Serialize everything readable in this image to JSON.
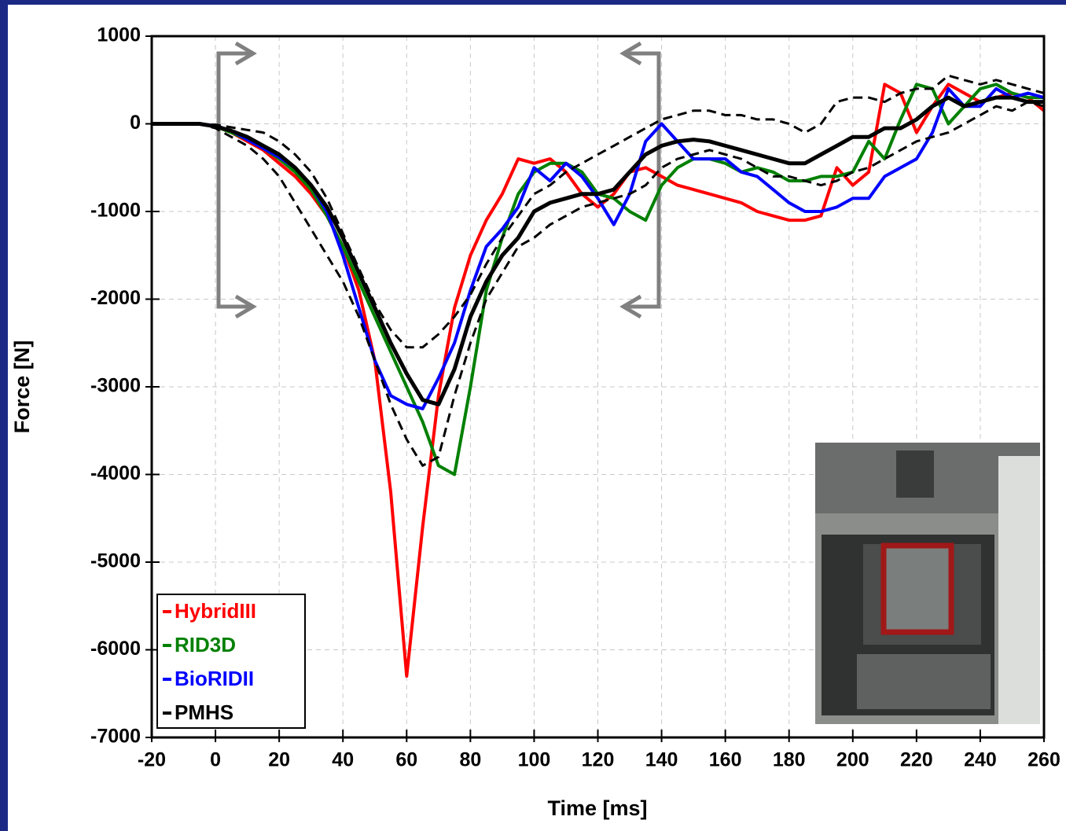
{
  "chart_data": {
    "type": "line",
    "x_label": "Time [ms]",
    "y_label": "Force [N]",
    "xlim": [
      -20,
      260
    ],
    "xticks": [
      -20,
      0,
      20,
      40,
      60,
      80,
      100,
      120,
      140,
      160,
      180,
      200,
      220,
      240,
      260
    ],
    "ylim": [
      -7000,
      1000
    ],
    "yticks": [
      1000,
      0,
      -1000,
      -2000,
      -3000,
      -4000,
      -5000,
      -6000,
      -7000
    ],
    "grid": true,
    "legend": "lower left",
    "x": [
      -20,
      -15,
      -10,
      -5,
      0,
      5,
      10,
      15,
      20,
      25,
      30,
      35,
      40,
      45,
      50,
      55,
      60,
      65,
      70,
      75,
      80,
      85,
      90,
      95,
      100,
      105,
      110,
      115,
      120,
      125,
      130,
      135,
      140,
      145,
      150,
      155,
      160,
      165,
      170,
      175,
      180,
      185,
      190,
      195,
      200,
      205,
      210,
      215,
      220,
      225,
      230,
      235,
      240,
      245,
      250,
      255,
      260
    ],
    "series": [
      {
        "name": "HybridIII",
        "color": "#ff0000",
        "dashed": false,
        "values": [
          0,
          0,
          0,
          0,
          -30,
          -100,
          -200,
          -300,
          -450,
          -600,
          -800,
          -1050,
          -1400,
          -1900,
          -2700,
          -4200,
          -6300,
          -4600,
          -3100,
          -2100,
          -1500,
          -1100,
          -800,
          -400,
          -450,
          -400,
          -550,
          -800,
          -950,
          -800,
          -550,
          -500,
          -600,
          -700,
          -750,
          -800,
          -850,
          -900,
          -1000,
          -1050,
          -1100,
          -1100,
          -1050,
          -500,
          -700,
          -550,
          450,
          350,
          -100,
          200,
          450,
          350,
          250,
          300,
          350,
          300,
          150
        ]
      },
      {
        "name": "RID3D",
        "color": "#008000",
        "dashed": false,
        "values": [
          0,
          0,
          0,
          0,
          -30,
          -100,
          -180,
          -280,
          -400,
          -550,
          -750,
          -1050,
          -1400,
          -1800,
          -2200,
          -2600,
          -3000,
          -3400,
          -3900,
          -4000,
          -3000,
          -1900,
          -1300,
          -800,
          -550,
          -450,
          -450,
          -550,
          -800,
          -850,
          -1000,
          -1100,
          -700,
          -500,
          -400,
          -400,
          -450,
          -550,
          -500,
          -550,
          -650,
          -650,
          -600,
          -600,
          -550,
          -200,
          -400,
          50,
          450,
          400,
          0,
          200,
          400,
          450,
          350,
          300,
          300
        ]
      },
      {
        "name": "BioRIDII",
        "color": "#0000ff",
        "dashed": false,
        "values": [
          0,
          0,
          0,
          0,
          -20,
          -80,
          -180,
          -280,
          -380,
          -500,
          -700,
          -1000,
          -1500,
          -2100,
          -2700,
          -3100,
          -3200,
          -3250,
          -2900,
          -2500,
          -1900,
          -1400,
          -1200,
          -950,
          -500,
          -650,
          -450,
          -600,
          -850,
          -1150,
          -800,
          -200,
          0,
          -200,
          -400,
          -400,
          -400,
          -550,
          -600,
          -750,
          -900,
          -1000,
          -1000,
          -950,
          -850,
          -850,
          -600,
          -500,
          -400,
          -100,
          400,
          200,
          200,
          400,
          300,
          350,
          300
        ]
      },
      {
        "name": "PMHS",
        "color": "#000000",
        "dashed": false,
        "values": [
          0,
          0,
          0,
          0,
          -30,
          -80,
          -150,
          -250,
          -350,
          -500,
          -700,
          -950,
          -1300,
          -1700,
          -2100,
          -2500,
          -2850,
          -3150,
          -3200,
          -2800,
          -2200,
          -1800,
          -1500,
          -1300,
          -1000,
          -900,
          -850,
          -800,
          -800,
          -750,
          -550,
          -350,
          -250,
          -200,
          -180,
          -200,
          -250,
          -300,
          -350,
          -400,
          -450,
          -450,
          -350,
          -250,
          -150,
          -150,
          -50,
          -50,
          50,
          200,
          300,
          200,
          250,
          300,
          300,
          250,
          250
        ]
      },
      {
        "color": "#000000",
        "dashed": true,
        "values": [
          0,
          0,
          0,
          0,
          -10,
          -40,
          -70,
          -100,
          -200,
          -350,
          -550,
          -850,
          -1250,
          -1650,
          -2050,
          -2350,
          -2550,
          -2550,
          -2400,
          -2200,
          -1950,
          -1600,
          -1300,
          -1050,
          -800,
          -700,
          -550,
          -450,
          -350,
          -250,
          -150,
          -50,
          50,
          100,
          150,
          150,
          100,
          100,
          50,
          50,
          0,
          -100,
          0,
          250,
          300,
          300,
          250,
          350,
          400,
          400,
          550,
          500,
          450,
          500,
          450,
          400,
          350
        ]
      },
      {
        "color": "#000000",
        "dashed": true,
        "values": [
          0,
          0,
          0,
          0,
          -50,
          -150,
          -250,
          -400,
          -600,
          -900,
          -1200,
          -1500,
          -1800,
          -2200,
          -2700,
          -3200,
          -3600,
          -3900,
          -3800,
          -3100,
          -2500,
          -2000,
          -1700,
          -1400,
          -1300,
          -1150,
          -1050,
          -950,
          -900,
          -850,
          -800,
          -700,
          -500,
          -400,
          -350,
          -300,
          -350,
          -400,
          -500,
          -600,
          -600,
          -650,
          -700,
          -650,
          -550,
          -500,
          -400,
          -300,
          -200,
          -150,
          -100,
          0,
          100,
          200,
          150,
          250,
          200
        ]
      }
    ]
  }
}
